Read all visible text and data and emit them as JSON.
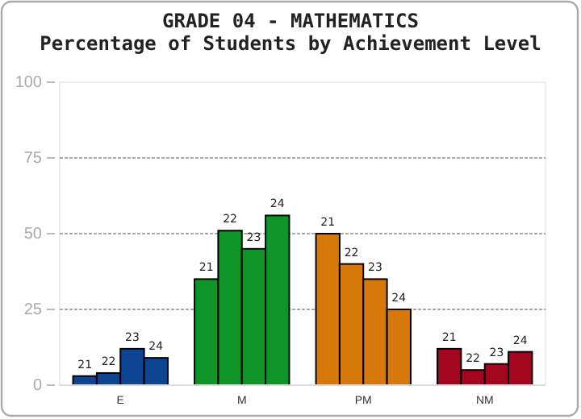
{
  "chart_data": {
    "type": "bar",
    "title": "GRADE 04 - MATHEMATICS",
    "subtitle": "Percentage of Students by Achievement Level",
    "categories": [
      "E",
      "M",
      "PM",
      "NM"
    ],
    "series": [
      {
        "name": "21",
        "colors": [
          "#0d4593",
          "#0e9427",
          "#d6790a",
          "#a5061f"
        ],
        "values": [
          3,
          35,
          50,
          12
        ]
      },
      {
        "name": "22",
        "colors": [
          "#0d4593",
          "#0e9427",
          "#d6790a",
          "#a5061f"
        ],
        "values": [
          4,
          51,
          40,
          5
        ]
      },
      {
        "name": "23",
        "colors": [
          "#0d4593",
          "#0e9427",
          "#d6790a",
          "#a5061f"
        ],
        "values": [
          12,
          45,
          35,
          7
        ]
      },
      {
        "name": "24",
        "colors": [
          "#0d4593",
          "#0e9427",
          "#d6790a",
          "#a5061f"
        ],
        "values": [
          9,
          56,
          25,
          11
        ]
      }
    ],
    "ylim": [
      0,
      100
    ],
    "yticks": [
      0,
      25,
      50,
      75,
      100
    ],
    "grid": "y"
  }
}
